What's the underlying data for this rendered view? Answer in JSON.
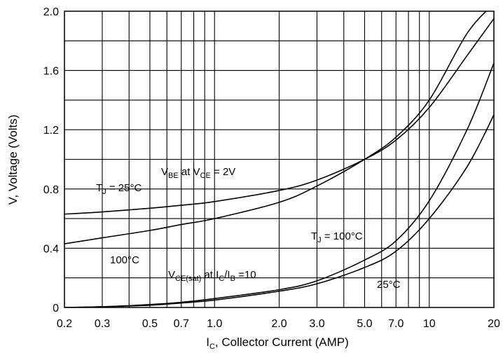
{
  "chart_data": {
    "type": "line",
    "xscale": "log",
    "xlim": [
      0.2,
      20
    ],
    "ylim": [
      0,
      2.0
    ],
    "grid": true,
    "xlabel": {
      "main": "I",
      "sub": "C",
      "rest": ", Collector Current (AMP)"
    },
    "ylabel": "V, Voltage (Volts)",
    "x_ticks": [
      0.2,
      0.3,
      0.5,
      0.7,
      1.0,
      2.0,
      3.0,
      5.0,
      7.0,
      10,
      20
    ],
    "x_tick_labels": [
      "0.2",
      "0.3",
      "0.5",
      "0.7",
      "1.0",
      "2.0",
      "3.0",
      "5.0",
      "7.0",
      "10",
      "20"
    ],
    "x_minor_grid": [
      0.4,
      0.6,
      0.8,
      0.9,
      4.0,
      6.0,
      8.0,
      9.0
    ],
    "y_ticks": [
      0,
      0.4,
      0.8,
      1.2,
      1.6,
      2.0
    ],
    "y_tick_labels": [
      "0",
      "0.4",
      "0.8",
      "1.2",
      "1.6",
      "2.0"
    ],
    "y_minor_grid": [
      0.2,
      0.6,
      1.0,
      1.4,
      1.8
    ],
    "series": [
      {
        "family": "VBE",
        "temp": "25",
        "x": [
          0.2,
          0.3,
          0.5,
          0.7,
          1.0,
          2.0,
          3.0,
          5.0,
          7.0,
          10,
          15,
          20
        ],
        "y": [
          0.63,
          0.645,
          0.67,
          0.69,
          0.715,
          0.79,
          0.86,
          1.0,
          1.13,
          1.35,
          1.7,
          1.95
        ]
      },
      {
        "family": "VBE",
        "temp": "100",
        "x": [
          0.2,
          0.3,
          0.5,
          0.7,
          1.0,
          2.0,
          3.0,
          5.0,
          7.0,
          10,
          15,
          20
        ],
        "y": [
          0.43,
          0.47,
          0.52,
          0.56,
          0.6,
          0.71,
          0.82,
          1.0,
          1.15,
          1.4,
          1.85,
          2.05
        ]
      },
      {
        "family": "VCE(sat)",
        "temp": "100",
        "x": [
          0.2,
          0.3,
          0.5,
          0.7,
          1.0,
          2.0,
          3.0,
          5.0,
          7.0,
          10,
          15,
          20
        ],
        "y": [
          0.0,
          0.005,
          0.02,
          0.035,
          0.06,
          0.12,
          0.18,
          0.32,
          0.45,
          0.72,
          1.2,
          1.65
        ]
      },
      {
        "family": "VCE(sat)",
        "temp": "25",
        "x": [
          0.2,
          0.3,
          0.5,
          0.7,
          1.0,
          2.0,
          3.0,
          5.0,
          7.0,
          10,
          15,
          20
        ],
        "y": [
          0.0,
          0.005,
          0.015,
          0.03,
          0.05,
          0.11,
          0.16,
          0.27,
          0.38,
          0.6,
          0.95,
          1.3
        ]
      }
    ],
    "annotations": {
      "vbe_label": {
        "a": "V",
        "a_sub": "BE",
        "b": " at V",
        "b_sub": "CE",
        "c": " = 2V"
      },
      "tj25_label": {
        "a": "T",
        "a_sub": "J",
        "b": " = 25°C"
      },
      "t100_left": "100°C",
      "vce_label": {
        "a": "V",
        "a_sub": "CE(sat)",
        "b": " at I",
        "b_sub": "C",
        "c": "/I",
        "c_sub": "B",
        "d": " =10"
      },
      "tj100_label": {
        "a": "T",
        "a_sub": "J",
        "b": " = 100°C"
      },
      "t25_right": "25°C"
    },
    "colors": {
      "line": "#000000",
      "grid": "#000000",
      "background": "#ffffff"
    }
  }
}
